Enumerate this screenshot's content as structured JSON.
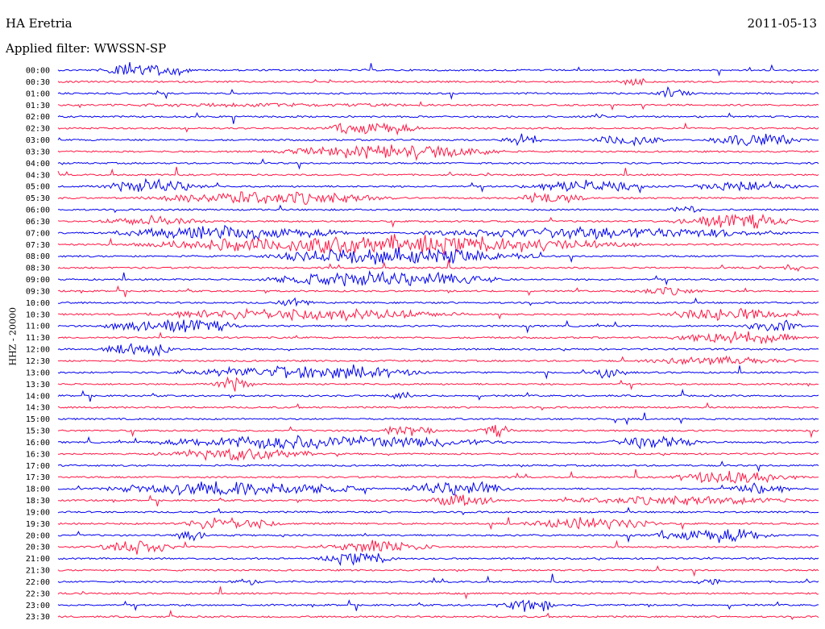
{
  "header": {
    "station": "HA Eretria",
    "date": "2011-05-13",
    "filter": "Applied filter: WWSSN-SP",
    "channel": "HHZ - 20000"
  },
  "colors": {
    "even_row": "#0000ee",
    "odd_row": "#ff1744",
    "text": "#000000"
  },
  "chart_data": {
    "type": "line",
    "title": "HA Eretria",
    "subtitle": "Applied filter: WWSSN-SP",
    "ylabel": "HHZ - 20000",
    "xlabel": "",
    "grid": false,
    "legend": "none",
    "row_minutes": 30,
    "categories": [
      "00:00",
      "00:30",
      "01:00",
      "01:30",
      "02:00",
      "02:30",
      "03:00",
      "03:30",
      "04:00",
      "04:30",
      "05:00",
      "05:30",
      "06:00",
      "06:30",
      "07:00",
      "07:30",
      "08:00",
      "08:30",
      "09:00",
      "09:30",
      "10:00",
      "10:30",
      "11:00",
      "11:30",
      "12:00",
      "12:30",
      "13:00",
      "13:30",
      "14:00",
      "14:30",
      "15:00",
      "15:30",
      "16:00",
      "16:30",
      "17:00",
      "17:30",
      "18:00",
      "18:30",
      "19:00",
      "19:30",
      "20:00",
      "20:30",
      "21:00",
      "21:30",
      "22:00",
      "22:30",
      "23:00",
      "23:30"
    ],
    "series": [
      {
        "colors": [
          "even_row",
          "odd_row"
        ]
      }
    ],
    "activity": [
      [
        [
          0.05,
          0.18,
          0.7
        ]
      ],
      [
        [
          0.73,
          0.78,
          0.35
        ]
      ],
      [
        [
          0.78,
          0.84,
          0.3
        ]
      ],
      [
        [
          0.05,
          0.5,
          0.1
        ]
      ],
      [
        [
          0.7,
          0.72,
          0.4
        ]
      ],
      [
        [
          0.35,
          0.48,
          0.6
        ]
      ],
      [
        [
          0.58,
          0.64,
          0.6
        ],
        [
          0.7,
          0.8,
          0.55
        ],
        [
          0.85,
          0.98,
          0.6
        ]
      ],
      [
        [
          0.28,
          0.6,
          0.6
        ]
      ],
      [],
      [],
      [
        [
          0.05,
          0.2,
          0.55
        ],
        [
          0.6,
          0.78,
          0.5
        ],
        [
          0.83,
          0.98,
          0.45
        ]
      ],
      [
        [
          0.1,
          0.45,
          0.55
        ],
        [
          0.6,
          0.7,
          0.45
        ]
      ],
      [
        [
          0.8,
          0.85,
          0.3
        ]
      ],
      [
        [
          0.05,
          0.2,
          0.4
        ],
        [
          0.8,
          0.98,
          0.6
        ]
      ],
      [
        [
          0.05,
          0.4,
          0.55
        ],
        [
          0.45,
          0.98,
          0.45
        ]
      ],
      [
        [
          0.08,
          0.78,
          0.8
        ]
      ],
      [
        [
          0.25,
          0.65,
          0.7
        ]
      ],
      [
        [
          0.95,
          0.98,
          0.3
        ]
      ],
      [
        [
          0.25,
          0.6,
          0.6
        ]
      ],
      [
        [
          0.75,
          0.85,
          0.3
        ]
      ],
      [
        [
          0.28,
          0.34,
          0.3
        ]
      ],
      [
        [
          0.1,
          0.55,
          0.5
        ],
        [
          0.78,
          0.98,
          0.5
        ]
      ],
      [
        [
          0.05,
          0.25,
          0.6
        ],
        [
          0.9,
          0.98,
          0.55
        ]
      ],
      [
        [
          0.8,
          0.98,
          0.6
        ]
      ],
      [
        [
          0.05,
          0.16,
          0.6
        ]
      ],
      [
        [
          0.75,
          0.98,
          0.3
        ]
      ],
      [
        [
          0.14,
          0.5,
          0.55
        ],
        [
          0.7,
          0.75,
          0.5
        ]
      ],
      [
        [
          0.2,
          0.26,
          0.6
        ]
      ],
      [
        [
          0.43,
          0.47,
          0.3
        ]
      ],
      [],
      [],
      [
        [
          0.42,
          0.5,
          0.5
        ],
        [
          0.55,
          0.6,
          0.45
        ]
      ],
      [
        [
          0.1,
          0.6,
          0.6
        ],
        [
          0.72,
          0.85,
          0.5
        ]
      ],
      [
        [
          0.12,
          0.35,
          0.5
        ]
      ],
      [],
      [
        [
          0.8,
          0.98,
          0.55
        ]
      ],
      [
        [
          0.05,
          0.42,
          0.6
        ],
        [
          0.45,
          0.6,
          0.6
        ],
        [
          0.88,
          0.97,
          0.55
        ]
      ],
      [
        [
          0.48,
          0.58,
          0.5
        ],
        [
          0.65,
          0.98,
          0.35
        ]
      ],
      [],
      [
        [
          0.15,
          0.3,
          0.55
        ],
        [
          0.6,
          0.8,
          0.5
        ]
      ],
      [
        [
          0.15,
          0.2,
          0.5
        ],
        [
          0.78,
          0.95,
          0.6
        ]
      ],
      [
        [
          0.05,
          0.16,
          0.6
        ],
        [
          0.35,
          0.5,
          0.55
        ]
      ],
      [
        [
          0.34,
          0.45,
          0.55
        ]
      ],
      [],
      [
        [
          0.22,
          0.27,
          0.3
        ],
        [
          0.83,
          0.88,
          0.3
        ]
      ],
      [],
      [
        [
          0.58,
          0.66,
          0.6
        ]
      ],
      []
    ]
  }
}
